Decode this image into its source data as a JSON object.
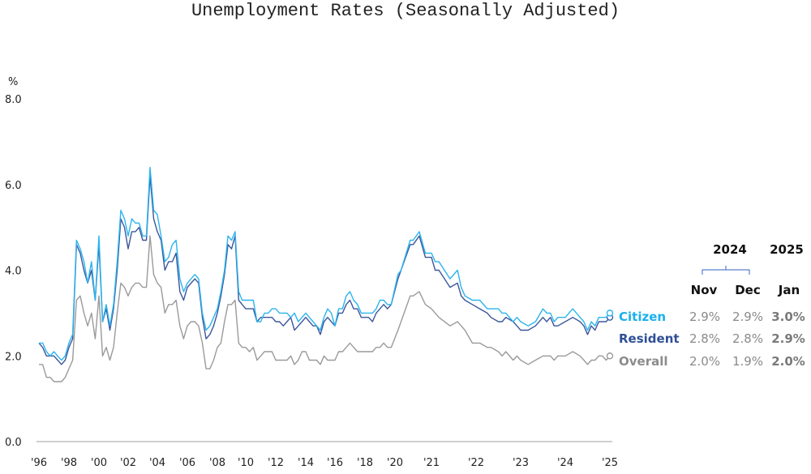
{
  "chart_data": {
    "type": "line",
    "title": "Unemployment Rates (Seasonally Adjusted)",
    "ylabel": "%",
    "ylim": [
      0,
      8
    ],
    "yticks": [
      "0.0",
      "2.0",
      "4.0",
      "6.0",
      "8.0"
    ],
    "xticks": [
      {
        "label": "'96",
        "date": "1996-01"
      },
      {
        "label": "'98",
        "date": "1998-01"
      },
      {
        "label": "'00",
        "date": "2000-01"
      },
      {
        "label": "'02",
        "date": "2002-01"
      },
      {
        "label": "'04",
        "date": "2004-01"
      },
      {
        "label": "'06",
        "date": "2006-01"
      },
      {
        "label": "'08",
        "date": "2008-01"
      },
      {
        "label": "'10",
        "date": "2010-01"
      },
      {
        "label": "'12",
        "date": "2012-01"
      },
      {
        "label": "'14",
        "date": "2014-01"
      },
      {
        "label": "'16",
        "date": "2016-01"
      },
      {
        "label": "'18",
        "date": "2018-01"
      },
      {
        "label": "'20",
        "date": "2020-01"
      },
      {
        "label": "'21",
        "date": "2021-01"
      },
      {
        "label": "'22",
        "date": "2022-01"
      },
      {
        "label": "'23",
        "date": "2023-01"
      },
      {
        "label": "'24",
        "date": "2024-01"
      },
      {
        "label": "'25",
        "date": "2025-01"
      }
    ],
    "grid": false,
    "x": [
      "1996-01",
      "1996-04",
      "1996-07",
      "1996-10",
      "1997-01",
      "1997-04",
      "1997-07",
      "1997-10",
      "1998-01",
      "1998-04",
      "1998-07",
      "1998-10",
      "1999-01",
      "1999-04",
      "1999-07",
      "1999-10",
      "2000-01",
      "2000-04",
      "2000-07",
      "2000-10",
      "2001-01",
      "2001-04",
      "2001-07",
      "2001-10",
      "2002-01",
      "2002-04",
      "2002-07",
      "2002-10",
      "2003-01",
      "2003-04",
      "2003-07",
      "2003-10",
      "2004-01",
      "2004-04",
      "2004-07",
      "2004-10",
      "2005-01",
      "2005-04",
      "2005-07",
      "2005-10",
      "2006-01",
      "2006-04",
      "2006-07",
      "2006-10",
      "2007-01",
      "2007-04",
      "2007-07",
      "2007-10",
      "2008-01",
      "2008-04",
      "2008-07",
      "2008-10",
      "2009-01",
      "2009-04",
      "2009-07",
      "2009-10",
      "2010-01",
      "2010-04",
      "2010-07",
      "2010-10",
      "2011-01",
      "2011-04",
      "2011-07",
      "2011-10",
      "2012-01",
      "2012-04",
      "2012-07",
      "2012-10",
      "2013-01",
      "2013-04",
      "2013-07",
      "2013-10",
      "2014-01",
      "2014-04",
      "2014-07",
      "2014-10",
      "2015-01",
      "2015-04",
      "2015-07",
      "2015-10",
      "2016-01",
      "2016-04",
      "2016-07",
      "2016-10",
      "2017-01",
      "2017-04",
      "2017-07",
      "2017-10",
      "2018-01",
      "2018-04",
      "2018-07",
      "2018-10",
      "2019-01",
      "2019-04",
      "2019-07",
      "2019-10",
      "2020-02",
      "2020-03",
      "2020-06",
      "2020-07",
      "2020-09",
      "2020-11",
      "2021-01",
      "2021-02",
      "2021-03",
      "2021-06",
      "2021-08",
      "2021-09",
      "2021-10",
      "2021-12",
      "2022-02",
      "2022-04",
      "2022-05",
      "2022-07",
      "2022-08",
      "2022-09",
      "2022-11",
      "2022-12",
      "2023-01",
      "2023-03",
      "2023-05",
      "2023-07",
      "2023-08",
      "2023-09",
      "2023-10",
      "2023-11",
      "2024-01",
      "2024-03",
      "2024-05",
      "2024-06",
      "2024-07",
      "2024-08",
      "2024-09",
      "2024-10",
      "2024-11",
      "2024-12",
      "2025-01"
    ],
    "series": [
      {
        "name": "Citizen",
        "color": "#2ab4ee",
        "values": [
          2.3,
          2.3,
          2.1,
          2.0,
          2.1,
          2.0,
          1.9,
          2.0,
          2.3,
          2.5,
          4.7,
          4.5,
          4.2,
          3.7,
          4.2,
          3.3,
          4.8,
          2.8,
          3.2,
          2.7,
          3.2,
          4.2,
          5.4,
          5.2,
          4.8,
          5.2,
          5.1,
          5.1,
          4.8,
          4.8,
          6.4,
          5.4,
          5.3,
          4.8,
          4.2,
          4.3,
          4.6,
          4.7,
          3.8,
          3.5,
          3.7,
          3.8,
          3.9,
          3.8,
          3.0,
          2.6,
          2.7,
          2.9,
          3.1,
          3.5,
          4.0,
          4.8,
          4.7,
          4.9,
          3.5,
          3.3,
          3.3,
          3.3,
          3.3,
          2.8,
          2.8,
          3.0,
          3.0,
          3.1,
          3.1,
          3.0,
          3.0,
          3.0,
          2.9,
          3.0,
          2.8,
          2.9,
          3.0,
          2.9,
          2.8,
          2.7,
          2.6,
          2.9,
          3.1,
          3.0,
          2.7,
          3.1,
          3.1,
          3.4,
          3.5,
          3.3,
          3.2,
          3.0,
          3.0,
          3.0,
          3.0,
          3.1,
          3.3,
          3.3,
          3.2,
          3.2,
          3.9,
          4.0,
          4.7,
          4.7,
          4.9,
          4.4,
          4.4,
          4.2,
          4.2,
          3.8,
          4.0,
          3.6,
          3.4,
          3.3,
          3.3,
          3.1,
          3.1,
          3.1,
          3.0,
          3.0,
          2.8,
          2.9,
          2.8,
          2.7,
          2.8,
          3.1,
          3.0,
          3.0,
          2.8,
          2.9,
          2.9,
          3.1,
          2.9,
          2.8,
          2.6,
          2.8,
          2.7,
          2.9,
          2.9,
          2.9,
          3.0
        ]
      },
      {
        "name": "Resident",
        "color": "#3b569b",
        "values": [
          2.3,
          2.2,
          2.0,
          2.0,
          2.0,
          1.9,
          1.8,
          1.9,
          2.2,
          2.4,
          4.6,
          4.4,
          4.0,
          3.7,
          4.0,
          3.3,
          4.6,
          2.8,
          3.1,
          2.6,
          3.1,
          4.0,
          5.2,
          5.0,
          4.5,
          4.9,
          4.9,
          5.0,
          4.7,
          4.7,
          6.2,
          5.2,
          4.9,
          4.7,
          4.0,
          4.2,
          4.2,
          4.4,
          3.5,
          3.3,
          3.6,
          3.7,
          3.8,
          3.7,
          2.9,
          2.4,
          2.5,
          2.7,
          3.0,
          3.4,
          3.9,
          4.6,
          4.5,
          4.8,
          3.3,
          3.2,
          3.1,
          3.1,
          3.1,
          2.8,
          2.9,
          2.9,
          2.9,
          2.9,
          2.8,
          2.8,
          2.7,
          2.8,
          2.9,
          2.6,
          2.7,
          2.8,
          2.9,
          2.8,
          2.7,
          2.7,
          2.5,
          2.8,
          2.9,
          2.8,
          2.7,
          3.0,
          3.0,
          3.2,
          3.3,
          3.1,
          3.1,
          2.9,
          2.9,
          2.9,
          2.8,
          3.0,
          3.1,
          3.2,
          3.1,
          3.2,
          3.8,
          4.0,
          4.6,
          4.6,
          4.8,
          4.3,
          4.3,
          4.0,
          4.0,
          3.6,
          3.7,
          3.4,
          3.3,
          3.2,
          3.1,
          3.0,
          2.9,
          2.8,
          2.8,
          2.9,
          2.8,
          2.7,
          2.6,
          2.6,
          2.7,
          2.9,
          2.8,
          2.9,
          2.7,
          2.7,
          2.8,
          2.9,
          2.8,
          2.7,
          2.5,
          2.7,
          2.6,
          2.8,
          2.8,
          2.8,
          2.9
        ]
      },
      {
        "name": "Overall",
        "color": "#9a9a9a",
        "values": [
          1.8,
          1.8,
          1.5,
          1.5,
          1.4,
          1.4,
          1.4,
          1.5,
          1.7,
          1.9,
          3.3,
          3.4,
          3.0,
          2.7,
          3.0,
          2.4,
          3.4,
          2.0,
          2.2,
          1.9,
          2.2,
          3.0,
          3.7,
          3.6,
          3.4,
          3.6,
          3.7,
          3.7,
          3.6,
          3.6,
          4.8,
          3.9,
          3.7,
          3.6,
          3.0,
          3.2,
          3.2,
          3.3,
          2.7,
          2.4,
          2.7,
          2.8,
          2.8,
          2.7,
          2.3,
          1.7,
          1.7,
          1.9,
          2.2,
          2.3,
          2.8,
          3.2,
          3.2,
          3.3,
          2.3,
          2.2,
          2.2,
          2.1,
          2.2,
          1.9,
          2.0,
          2.1,
          2.1,
          2.1,
          1.9,
          1.9,
          1.9,
          1.9,
          2.0,
          1.8,
          1.9,
          2.1,
          2.1,
          1.9,
          1.9,
          1.9,
          1.8,
          2.0,
          1.9,
          1.9,
          1.9,
          2.1,
          2.1,
          2.2,
          2.3,
          2.2,
          2.1,
          2.1,
          2.1,
          2.1,
          2.1,
          2.2,
          2.2,
          2.3,
          2.2,
          2.2,
          2.6,
          2.8,
          3.4,
          3.4,
          3.5,
          3.2,
          3.1,
          3.0,
          2.9,
          2.7,
          2.8,
          2.7,
          2.6,
          2.3,
          2.3,
          2.2,
          2.2,
          2.1,
          2.0,
          2.1,
          1.9,
          2.0,
          1.9,
          1.8,
          1.9,
          2.0,
          2.0,
          2.0,
          1.9,
          2.0,
          2.0,
          2.1,
          2.0,
          1.9,
          1.8,
          1.9,
          1.9,
          2.0,
          2.0,
          1.9,
          2.0
        ]
      }
    ],
    "table": {
      "year_headers": [
        "2024",
        "2025"
      ],
      "months": [
        "Nov",
        "Dec",
        "Jan"
      ],
      "rows": [
        {
          "name": "Citizen",
          "color": "#19b0ec",
          "values": [
            "2.9%",
            "2.9%",
            "3.0%"
          ]
        },
        {
          "name": "Resident",
          "color": "#2f4f97",
          "values": [
            "2.8%",
            "2.8%",
            "2.9%"
          ]
        },
        {
          "name": "Overall",
          "color": "#8c8c8c",
          "values": [
            "2.0%",
            "1.9%",
            "2.0%"
          ]
        }
      ]
    }
  }
}
